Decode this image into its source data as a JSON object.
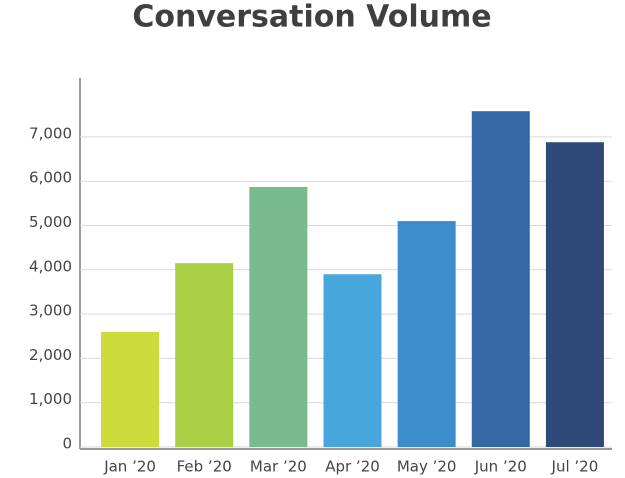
{
  "chart_data": {
    "type": "bar",
    "title": "Conversation Volume",
    "categories": [
      "Jan ’20",
      "Feb ’20",
      "Mar ’20",
      "Apr ’20",
      "May ’20",
      "Jun ’20",
      "Jul ’20"
    ],
    "values": [
      2600,
      4150,
      5870,
      3900,
      5100,
      7580,
      6880
    ],
    "colors": [
      "#cddc3a",
      "#a9cf45",
      "#79bb8e",
      "#47a7dc",
      "#3d8ccb",
      "#3567a6",
      "#2f4a78"
    ],
    "ylim": [
      0,
      8000
    ],
    "yticks": [
      0,
      {
        "value": 1000,
        "label": "1,000"
      },
      {
        "value": 2000,
        "label": "2,000"
      },
      {
        "value": 3000,
        "label": "3,000"
      },
      {
        "value": 4000,
        "label": "4,000"
      },
      {
        "value": 5000,
        "label": "5,000"
      },
      {
        "value": 6000,
        "label": "6,000"
      },
      {
        "value": 7000,
        "label": "7,000"
      }
    ],
    "grid": true
  }
}
